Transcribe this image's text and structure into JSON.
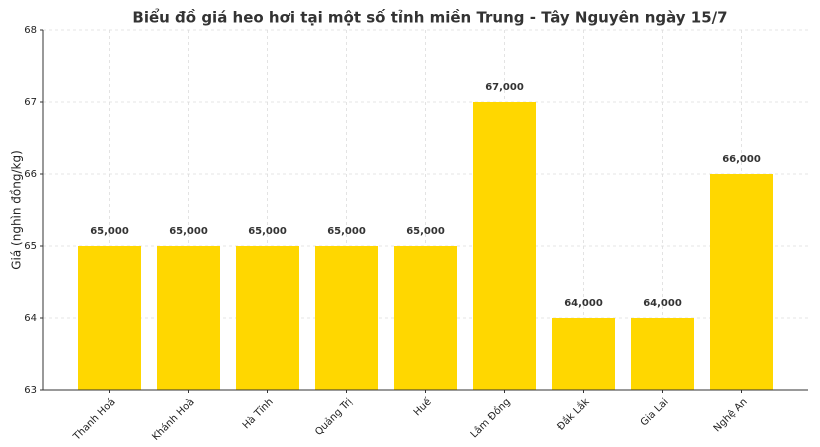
{
  "chart_data": {
    "type": "bar",
    "title": "Biểu đồ giá heo hơi tại một số tỉnh miền Trung - Tây Nguyên ngày 15/7",
    "y_label": "Giá (nghìn đồng/kg)",
    "categories": [
      "Thanh Hoá",
      "Khánh Hoà",
      "Hà Tĩnh",
      "Quảng Trị",
      "Huế",
      "Lâm Đồng",
      "Đắk Lắk",
      "Gia Lai",
      "Nghệ An"
    ],
    "values": [
      65,
      65,
      65,
      65,
      65,
      67,
      64,
      64,
      66
    ],
    "value_labels": [
      "65,000",
      "65,000",
      "65,000",
      "65,000",
      "65,000",
      "67,000",
      "64,000",
      "64,000",
      "66,000"
    ],
    "color": "#ffd700",
    "ylim": [
      63,
      68
    ],
    "yticks": [
      63,
      64,
      65,
      66,
      67,
      68
    ],
    "grid": true
  }
}
